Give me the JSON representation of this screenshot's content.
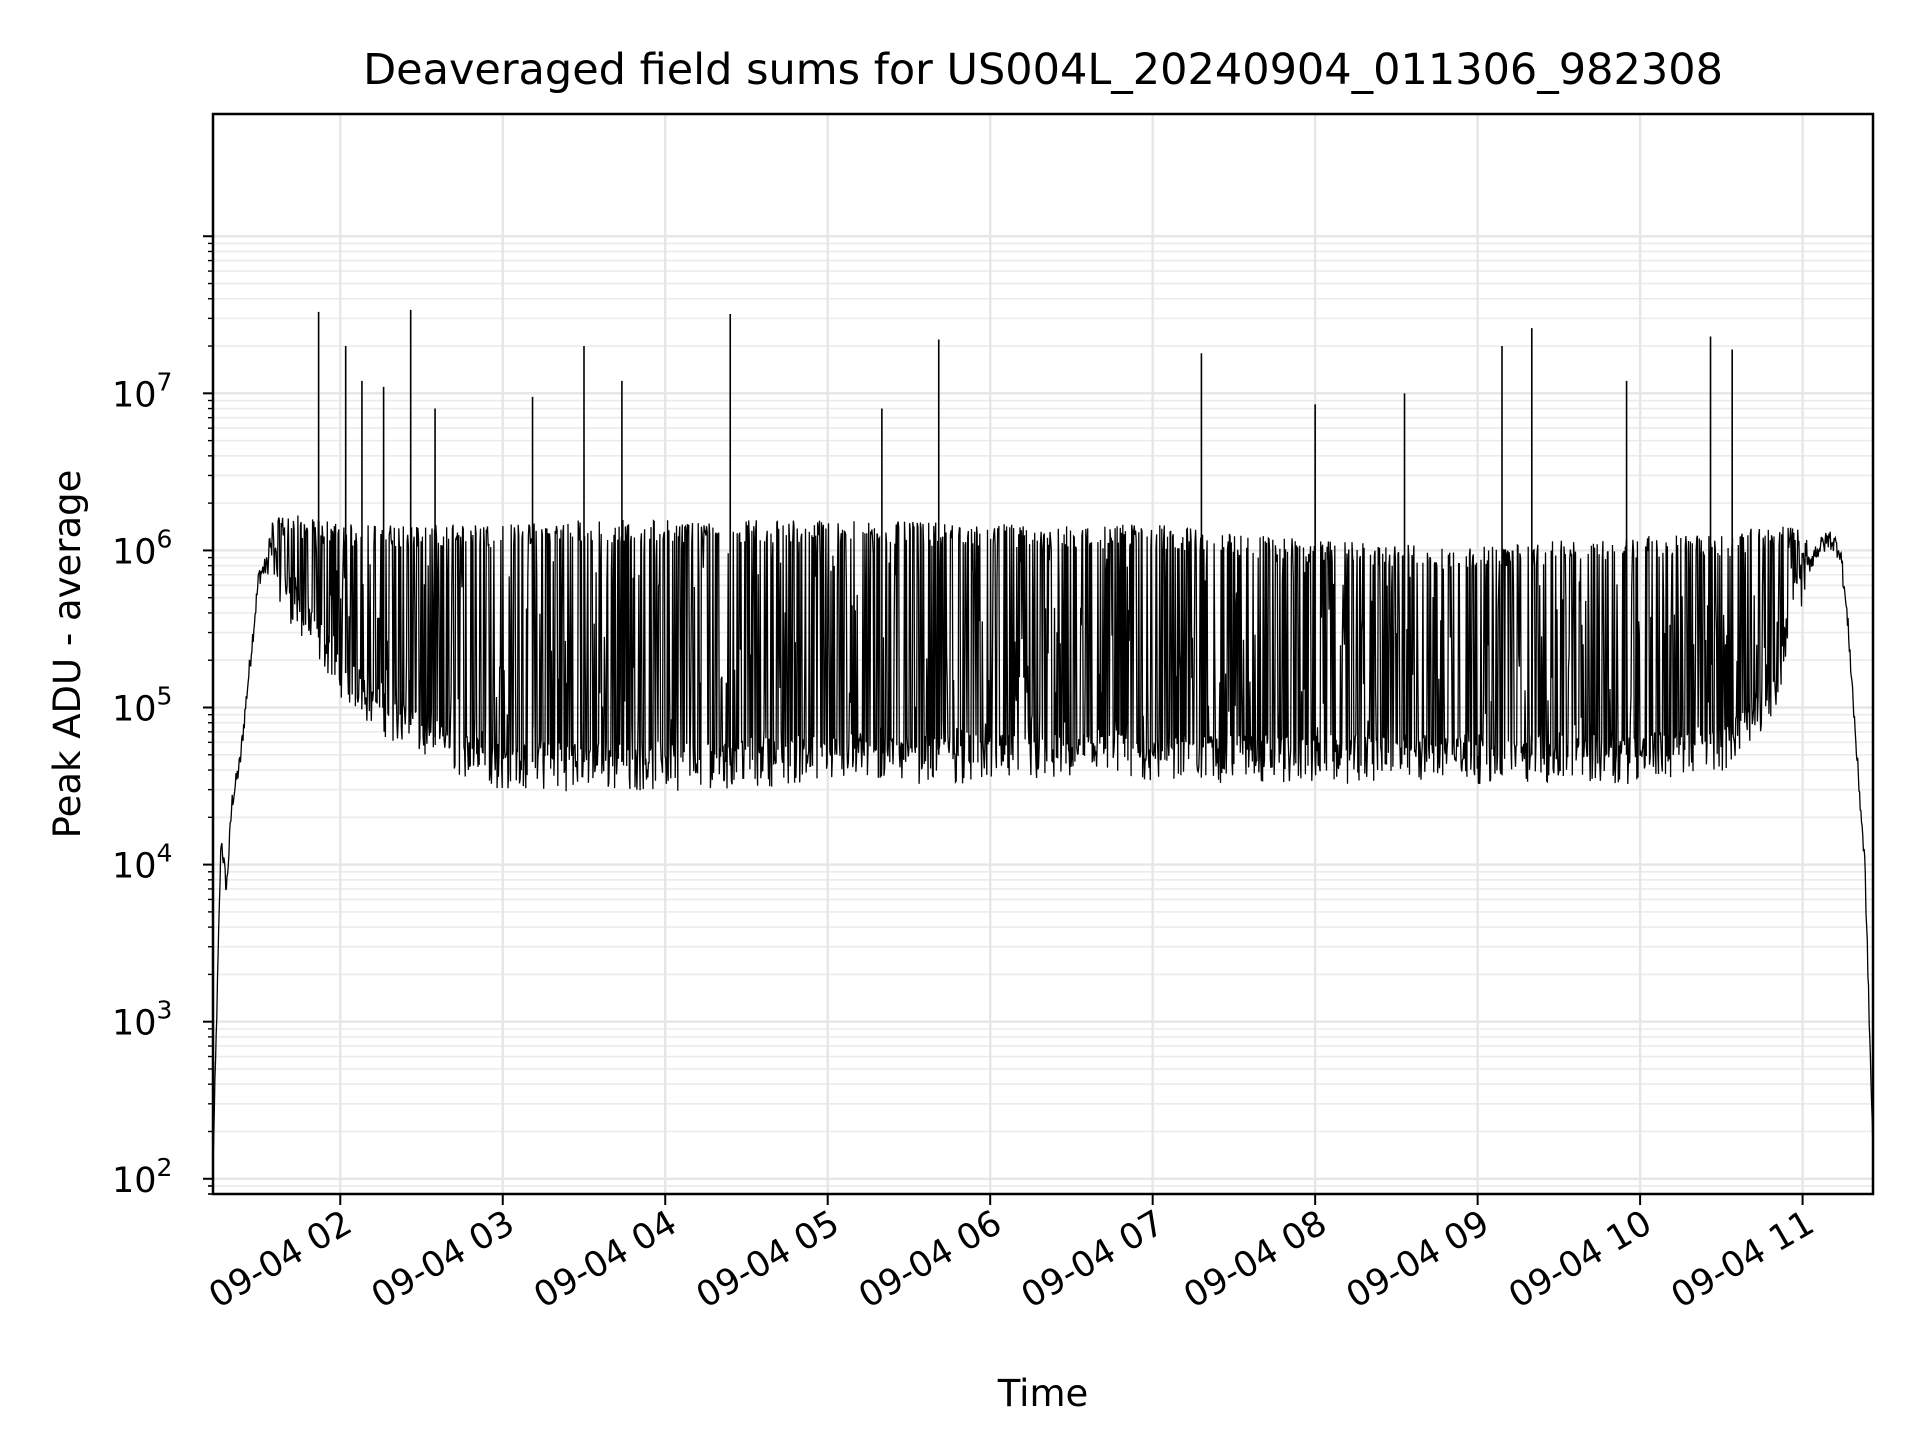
{
  "chart_data": {
    "type": "line",
    "title": "Deaveraged field sums for US004L_20240904_011306_982308",
    "xlabel": "Time",
    "ylabel": "Peak ADU - average",
    "yscale": "log",
    "xlim": [
      "2024-09-04 01:13",
      "2024-09-04 11:26"
    ],
    "ylim": [
      80,
      600000000
    ],
    "grid": true,
    "x_ticks": [
      "09-04 02",
      "09-04 03",
      "09-04 04",
      "09-04 05",
      "09-04 06",
      "09-04 07",
      "09-04 08",
      "09-04 09",
      "09-04 10",
      "09-04 11"
    ],
    "y_ticks": [
      {
        "base": "10",
        "exp": "2",
        "value": 100
      },
      {
        "base": "10",
        "exp": "3",
        "value": 1000
      },
      {
        "base": "10",
        "exp": "4",
        "value": 10000
      },
      {
        "base": "10",
        "exp": "5",
        "value": 100000
      },
      {
        "base": "10",
        "exp": "6",
        "value": 1000000
      },
      {
        "base": "10",
        "exp": "7",
        "value": 10000000
      }
    ],
    "series": [
      {
        "color": "#000000",
        "x": [
          "2024-09-04 01:13",
          "2024-09-04 01:16",
          "2024-09-04 01:18",
          "2024-09-04 01:20",
          "2024-09-04 01:23",
          "2024-09-04 01:26",
          "2024-09-04 01:30",
          "2024-09-04 01:35",
          "2024-09-04 01:40",
          "2024-09-04 01:45",
          "2024-09-04 01:50",
          "2024-09-04 01:55",
          "2024-09-04 02:00",
          "2024-09-04 02:10",
          "2024-09-04 02:20",
          "2024-09-04 02:30",
          "2024-09-04 02:40",
          "2024-09-04 02:50",
          "2024-09-04 03:00",
          "2024-09-04 03:30",
          "2024-09-04 04:00",
          "2024-09-04 05:00",
          "2024-09-04 06:00",
          "2024-09-04 07:00",
          "2024-09-04 08:00",
          "2024-09-04 09:00",
          "2024-09-04 10:00",
          "2024-09-04 10:30",
          "2024-09-04 10:40",
          "2024-09-04 10:50",
          "2024-09-04 11:00",
          "2024-09-04 11:05",
          "2024-09-04 11:10",
          "2024-09-04 11:14",
          "2024-09-04 11:17",
          "2024-09-04 11:20",
          "2024-09-04 11:23",
          "2024-09-04 11:26"
        ],
        "baseline": [
          120,
          15000,
          7000,
          25000,
          45000,
          150000,
          700000,
          900000,
          600000,
          400000,
          300000,
          250000,
          180000,
          120000,
          90000,
          70000,
          60000,
          50000,
          45000,
          45000,
          45000,
          50000,
          50000,
          50000,
          50000,
          50000,
          50000,
          60000,
          80000,
          150000,
          700000,
          1000000,
          1200000,
          1000000,
          300000,
          50000,
          10000,
          150
        ],
        "upper": [
          120,
          15000,
          7000,
          25000,
          50000,
          200000,
          1000000,
          1500000,
          1600000,
          1600000,
          1500000,
          1500000,
          1400000,
          1400000,
          1400000,
          1400000,
          1400000,
          1400000,
          1400000,
          1500000,
          1500000,
          1500000,
          1400000,
          1400000,
          1100000,
          1000000,
          1200000,
          1200000,
          1300000,
          1400000,
          1300000,
          1200000,
          1200000,
          1000000,
          300000,
          50000,
          10000,
          150
        ],
        "spikes": [
          {
            "x": "2024-09-04 01:52",
            "y": 33000000
          },
          {
            "x": "2024-09-04 02:02",
            "y": 20000000
          },
          {
            "x": "2024-09-04 02:08",
            "y": 12000000
          },
          {
            "x": "2024-09-04 02:26",
            "y": 34000000
          },
          {
            "x": "2024-09-04 02:16",
            "y": 11000000
          },
          {
            "x": "2024-09-04 02:35",
            "y": 8000000
          },
          {
            "x": "2024-09-04 03:11",
            "y": 9500000
          },
          {
            "x": "2024-09-04 03:30",
            "y": 20000000
          },
          {
            "x": "2024-09-04 03:44",
            "y": 12000000
          },
          {
            "x": "2024-09-04 04:24",
            "y": 32000000
          },
          {
            "x": "2024-09-04 05:20",
            "y": 8000000
          },
          {
            "x": "2024-09-04 05:41",
            "y": 22000000
          },
          {
            "x": "2024-09-04 07:18",
            "y": 18000000
          },
          {
            "x": "2024-09-04 08:00",
            "y": 8500000
          },
          {
            "x": "2024-09-04 08:33",
            "y": 10000000
          },
          {
            "x": "2024-09-04 09:09",
            "y": 20000000
          },
          {
            "x": "2024-09-04 09:20",
            "y": 26000000
          },
          {
            "x": "2024-09-04 10:26",
            "y": 23000000
          },
          {
            "x": "2024-09-04 10:34",
            "y": 19000000
          },
          {
            "x": "2024-09-04 09:55",
            "y": 12000000
          }
        ]
      }
    ]
  }
}
